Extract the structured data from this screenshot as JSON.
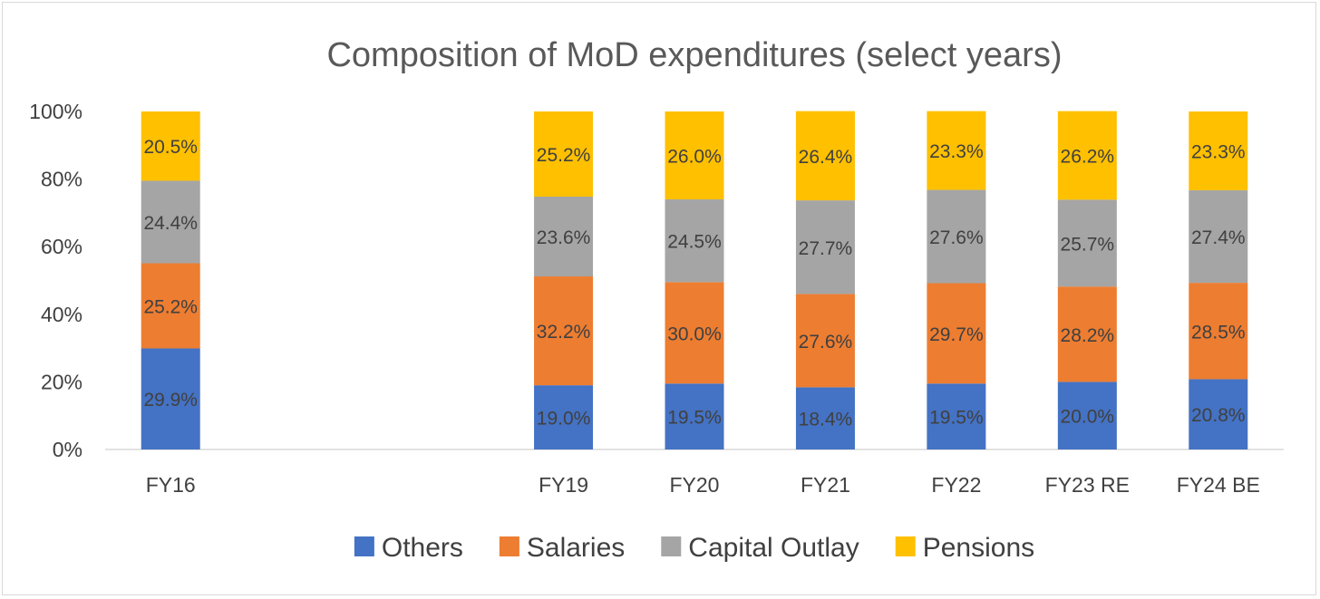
{
  "chart_data": {
    "type": "bar",
    "stacked": true,
    "percent": true,
    "title": "Composition of MoD expenditures (select years)",
    "categories": [
      "FY16",
      "",
      "",
      "FY19",
      "FY20",
      "FY21",
      "FY22",
      "FY23 RE",
      "FY24 BE"
    ],
    "series": [
      {
        "name": "Others",
        "color": "#4472C4",
        "values": [
          29.9,
          null,
          null,
          19.0,
          19.5,
          18.4,
          19.5,
          20.0,
          20.8
        ]
      },
      {
        "name": "Salaries",
        "color": "#ED7D31",
        "values": [
          25.2,
          null,
          null,
          32.2,
          30.0,
          27.6,
          29.7,
          28.2,
          28.5
        ]
      },
      {
        "name": "Capital Outlay",
        "color": "#A5A5A5",
        "values": [
          24.4,
          null,
          null,
          23.6,
          24.5,
          27.7,
          27.6,
          25.7,
          27.4
        ]
      },
      {
        "name": "Pensions",
        "color": "#FFC000",
        "values": [
          20.5,
          null,
          null,
          25.2,
          26.0,
          26.4,
          23.3,
          26.2,
          23.3
        ]
      }
    ],
    "ylim": [
      0,
      100
    ],
    "yticks": [
      "0%",
      "20%",
      "40%",
      "60%",
      "80%",
      "100%"
    ],
    "legend": "bottom",
    "grid": false
  }
}
